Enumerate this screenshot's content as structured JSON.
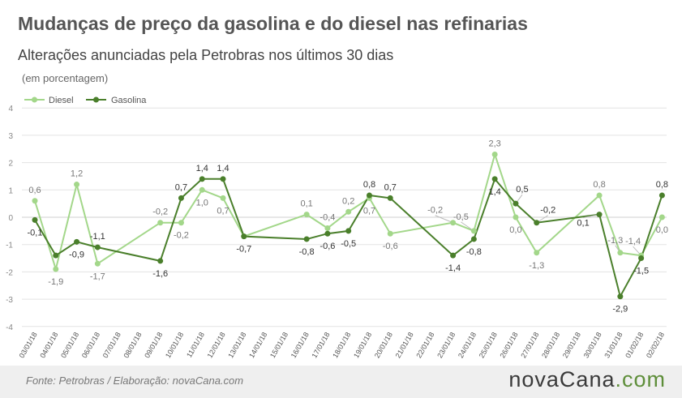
{
  "header": {
    "title": "Mudanças de preço da gasolina e do diesel nas refinarias",
    "subtitle": "Alterações anunciadas pela Petrobras nos últimos 30 dias",
    "unit": "(em porcentagem)"
  },
  "footer": {
    "source": "Fonte:  Petrobras  / Elaboração:  novaCana.com",
    "logo_main": "novaCana",
    "logo_suffix": ".com"
  },
  "colors": {
    "diesel": "#a3d78a",
    "gasolina": "#4a7f2b",
    "grid": "#e0e0e0"
  },
  "chart_data": {
    "type": "line",
    "categories": [
      "03/01/18",
      "04/01/18",
      "05/01/18",
      "06/01/18",
      "07/01/18",
      "08/01/18",
      "09/01/18",
      "10/01/18",
      "11/01/18",
      "12/01/18",
      "13/01/18",
      "14/01/18",
      "15/01/18",
      "16/01/18",
      "17/01/18",
      "18/01/18",
      "19/01/18",
      "20/01/18",
      "21/01/18",
      "22/01/18",
      "23/01/18",
      "24/01/18",
      "25/01/18",
      "26/01/18",
      "27/01/18",
      "28/01/18",
      "29/01/18",
      "30/01/18",
      "31/01/18",
      "01/02/18",
      "02/02/18"
    ],
    "ylim": [
      -4,
      4
    ],
    "yticks": [
      "-4",
      "-3",
      "-2",
      "-1",
      "0",
      "1",
      "2",
      "3",
      "4"
    ],
    "legend": "top-left",
    "series": [
      {
        "name": "Diesel",
        "color": "#a3d78a",
        "points": [
          {
            "x": 0,
            "y": 0.6,
            "label": "0,6"
          },
          {
            "x": 1,
            "y": -1.9,
            "label": "-1,9"
          },
          {
            "x": 2,
            "y": 1.2,
            "label": "1,2"
          },
          {
            "x": 3,
            "y": -1.7,
            "label": "-1,7"
          },
          {
            "x": 6,
            "y": -0.2,
            "label": "-0,2"
          },
          {
            "x": 7,
            "y": -0.2,
            "label": "-0,2"
          },
          {
            "x": 8,
            "y": 1.0,
            "label": "1,0"
          },
          {
            "x": 9,
            "y": 0.7,
            "label": "0,7"
          },
          {
            "x": 10,
            "y": -0.7,
            "label": ""
          },
          {
            "x": 13,
            "y": 0.1,
            "label": "0,1"
          },
          {
            "x": 14,
            "y": -0.4,
            "label": "-0,4"
          },
          {
            "x": 15,
            "y": 0.2,
            "label": "0,2"
          },
          {
            "x": 16,
            "y": 0.7,
            "label": "0,7"
          },
          {
            "x": 17,
            "y": -0.6,
            "label": "-0,6"
          },
          {
            "x": 20,
            "y": -0.2,
            "label": "-0,2"
          },
          {
            "x": 21,
            "y": -0.5,
            "label": "-0,5"
          },
          {
            "x": 22,
            "y": 2.3,
            "label": "2,3"
          },
          {
            "x": 23,
            "y": 0.0,
            "label": "0,0"
          },
          {
            "x": 24,
            "y": -1.3,
            "label": "-1,3"
          },
          {
            "x": 27,
            "y": 0.8,
            "label": "0,8"
          },
          {
            "x": 28,
            "y": -1.3,
            "label": "-1,3"
          },
          {
            "x": 29,
            "y": -1.4,
            "label": "-1,4"
          },
          {
            "x": 30,
            "y": 0.0,
            "label": "0,0"
          }
        ]
      },
      {
        "name": "Gasolina",
        "color": "#4a7f2b",
        "points": [
          {
            "x": 0,
            "y": -0.1,
            "label": "-0,1"
          },
          {
            "x": 1,
            "y": -1.4,
            "label": ""
          },
          {
            "x": 2,
            "y": -0.9,
            "label": "-0,9"
          },
          {
            "x": 3,
            "y": -1.1,
            "label": "-1,1"
          },
          {
            "x": 6,
            "y": -1.6,
            "label": "-1,6"
          },
          {
            "x": 7,
            "y": 0.7,
            "label": "0,7"
          },
          {
            "x": 8,
            "y": 1.4,
            "label": "1,4"
          },
          {
            "x": 9,
            "y": 1.4,
            "label": "1,4"
          },
          {
            "x": 10,
            "y": -0.7,
            "label": "-0,7"
          },
          {
            "x": 13,
            "y": -0.8,
            "label": "-0,8"
          },
          {
            "x": 14,
            "y": -0.6,
            "label": "-0,6"
          },
          {
            "x": 15,
            "y": -0.5,
            "label": "-0,5"
          },
          {
            "x": 16,
            "y": 0.8,
            "label": "0,8"
          },
          {
            "x": 17,
            "y": 0.7,
            "label": "0,7"
          },
          {
            "x": 20,
            "y": -1.4,
            "label": "-1,4"
          },
          {
            "x": 21,
            "y": -0.8,
            "label": "-0,8"
          },
          {
            "x": 22,
            "y": 1.4,
            "label": "1,4"
          },
          {
            "x": 23,
            "y": 0.5,
            "label": "0,5"
          },
          {
            "x": 24,
            "y": -0.2,
            "label": "-0,2"
          },
          {
            "x": 27,
            "y": 0.1,
            "label": "0,1"
          },
          {
            "x": 28,
            "y": -2.9,
            "label": "-2,9"
          },
          {
            "x": 29,
            "y": -1.5,
            "label": "-1,5"
          },
          {
            "x": 30,
            "y": 0.8,
            "label": "0,8"
          }
        ]
      }
    ]
  }
}
